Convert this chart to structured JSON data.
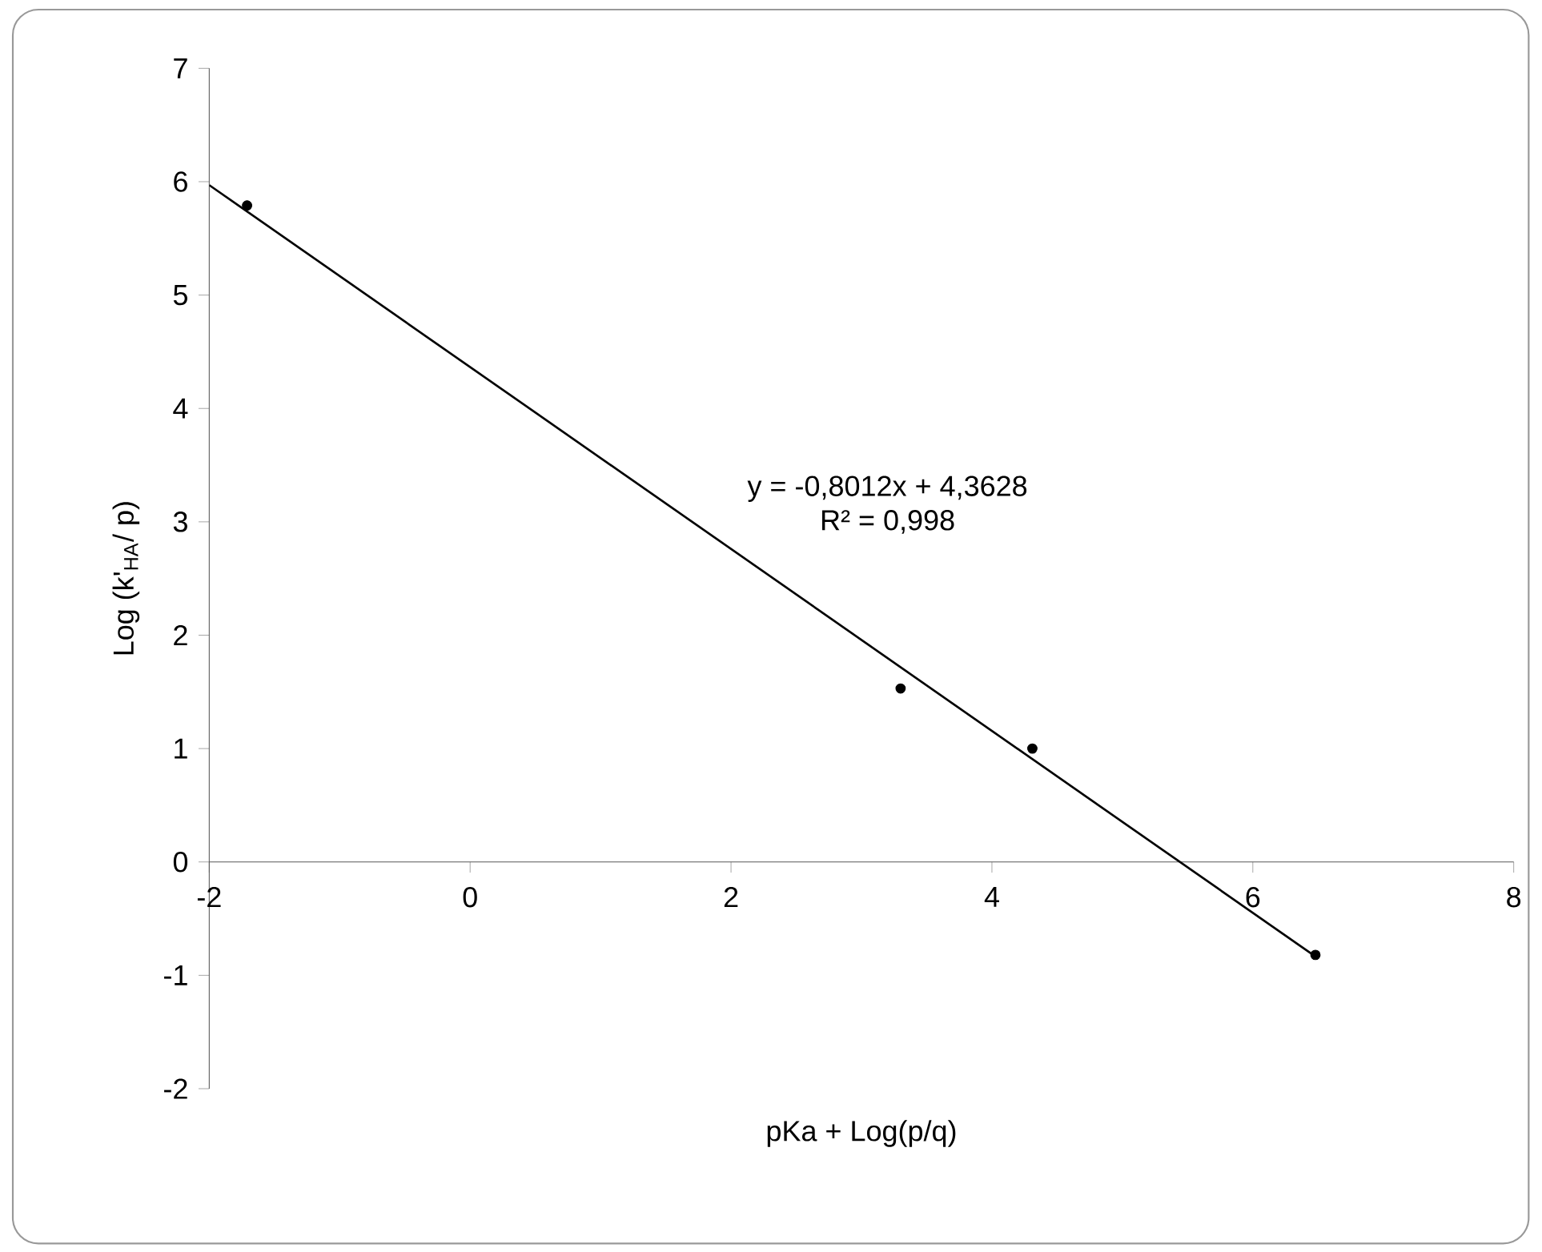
{
  "chart_data": {
    "type": "scatter",
    "xlabel": "pKa + Log(p/q)",
    "ylabel": "Log (k'$_{HA}$/ p)",
    "series": [
      {
        "type": "scatter",
        "color": "#000000",
        "marker": "circle",
        "x": [
          -1.71,
          3.3,
          4.31,
          6.48
        ],
        "values": [
          5.79,
          1.53,
          1.0,
          -0.82
        ]
      },
      {
        "type": "line",
        "color": "#000000",
        "marker": "none",
        "x": [
          -2,
          6.5
        ],
        "values": [
          5.97,
          -0.85
        ]
      }
    ],
    "annotations": [
      "y = -0,8012x + 4,3628",
      "R² = 0,998"
    ],
    "xlim": [
      -2,
      8
    ],
    "ylim": [
      -2,
      7
    ],
    "xticks": [
      -2,
      0,
      2,
      4,
      6,
      8
    ],
    "yticks": [
      -2,
      -1,
      0,
      1,
      2,
      3,
      4,
      5,
      6,
      7
    ],
    "grid": false,
    "legend": false
  }
}
